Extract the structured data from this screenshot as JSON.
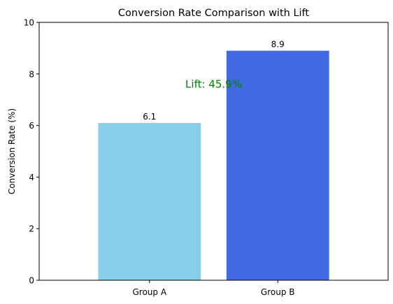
{
  "chart_data": {
    "type": "bar",
    "title": "Conversion Rate Comparison with Lift",
    "xlabel": "",
    "ylabel": "Conversion Rate (%)",
    "categories": [
      "Group A",
      "Group B"
    ],
    "values": [
      6.1,
      8.9
    ],
    "data_labels": [
      "6.1",
      "8.9"
    ],
    "colors": [
      "#87CEEB",
      "#4169E1"
    ],
    "ylim": [
      0,
      10
    ],
    "yticks": [
      0,
      2,
      4,
      6,
      8,
      10
    ],
    "grid": false,
    "annotation": {
      "text": "Lift: 45.9%",
      "color": "#008000",
      "x": 0.5,
      "y": 7.6
    }
  }
}
